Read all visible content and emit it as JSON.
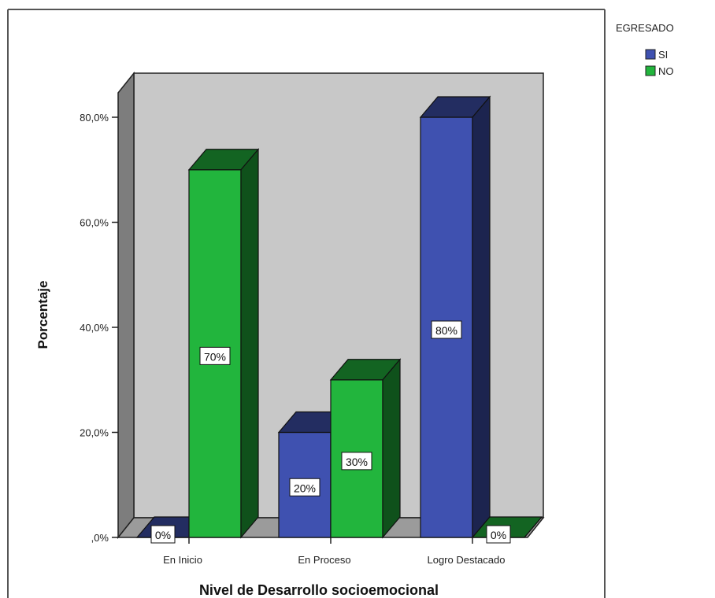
{
  "chart_data": {
    "type": "bar",
    "subtype": "clustered-3d",
    "categories": [
      "En Inicio",
      "En Proceso",
      "Logro Destacado"
    ],
    "series": [
      {
        "name": "SI",
        "values": [
          0,
          20,
          80
        ],
        "data_labels": [
          "0%",
          "20%",
          "80%"
        ],
        "color": "#3f51b0"
      },
      {
        "name": "NO",
        "values": [
          70,
          30,
          0
        ],
        "data_labels": [
          "70%",
          "30%",
          "0%"
        ],
        "color": "#22b53d"
      }
    ],
    "ylabel": "Porcentaje",
    "xlabel": "Nivel de Desarrollo socioemocional",
    "ylim": [
      0,
      80
    ],
    "yticks": [
      0,
      20,
      40,
      60,
      80
    ],
    "ytick_labels": [
      ",0%",
      "20,0%",
      "40,0%",
      "60,0%",
      "80,0%"
    ],
    "legend": {
      "title": "EGRESADO",
      "position": "top-right"
    },
    "grid": false,
    "wall_color": "#c8c8c8"
  }
}
